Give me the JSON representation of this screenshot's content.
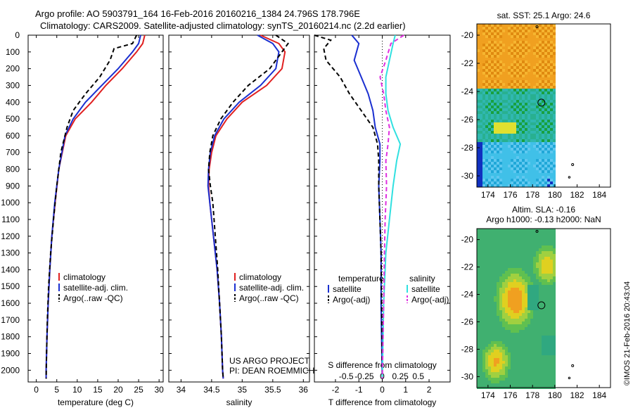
{
  "header": {
    "line1": "Argo profile: AO 5903791_164 16-Feb-2016 20160216_1384 24.796S 178.796E",
    "line2": "Climatology: CARS2009. Satellite-adjusted climatology: synTS_20160214.nc (2.2d earlier)"
  },
  "depth_ticks": [
    "0",
    "100",
    "200",
    "300",
    "400",
    "500",
    "600",
    "700",
    "800",
    "900",
    "1000",
    "1100",
    "1200",
    "1300",
    "1400",
    "1500",
    "1600",
    "1700",
    "1800",
    "1900",
    "2000"
  ],
  "colors": {
    "climatology": "#e02020",
    "satellite": "#1a2fd0",
    "argo": "#000000",
    "sat_sal": "#30e0e0",
    "argo_sal": "#e030e0"
  },
  "chart_data": [
    {
      "type": "line",
      "xlabel": "temperature (deg C)",
      "xticks": [
        "0",
        "5",
        "10",
        "15",
        "20",
        "25",
        "30"
      ],
      "xlim": [
        -2,
        31
      ],
      "ylim": [
        2070,
        0
      ],
      "legend": [
        "climatology",
        "satellite-adj. clim.",
        "Argo(..raw -QC)"
      ],
      "series": [
        {
          "name": "climatology",
          "depth": [
            0,
            50,
            100,
            200,
            300,
            400,
            500,
            600,
            800,
            1000,
            1200,
            1400,
            1600,
            1800,
            2000,
            2050
          ],
          "values": [
            26.5,
            26,
            24.5,
            21,
            17,
            13.5,
            9.5,
            7.2,
            5.5,
            4.6,
            3.8,
            3.3,
            2.9,
            2.6,
            2.4,
            2.4
          ]
        },
        {
          "name": "satellite-adj. clim.",
          "depth": [
            0,
            50,
            100,
            200,
            300,
            400,
            500,
            600,
            800,
            1000,
            1200,
            1400,
            1600,
            1800,
            2000,
            2050
          ],
          "values": [
            25.5,
            25,
            23.5,
            20,
            16,
            12,
            9,
            7,
            5.5,
            4.5,
            3.8,
            3.3,
            2.9,
            2.6,
            2.4,
            2.4
          ]
        },
        {
          "name": "Argo(..raw -QC)",
          "depth": [
            0,
            50,
            80,
            150,
            250,
            350,
            450,
            550,
            700,
            900,
            1100,
            1300,
            1500,
            1700,
            1900,
            2050
          ],
          "values": [
            24.5,
            23.5,
            19,
            18,
            15.5,
            12,
            9,
            7.5,
            6,
            5,
            4.2,
            3.5,
            3,
            2.7,
            2.5,
            2.4
          ]
        }
      ]
    },
    {
      "type": "line",
      "xlabel": "salinity",
      "xticks": [
        "34",
        "34.5",
        "35",
        "35.5",
        "36"
      ],
      "xlim": [
        33.8,
        36.1
      ],
      "ylim": [
        2070,
        0
      ],
      "legend": [
        "climatology",
        "satellite-adj. clim.",
        "Argo(..raw -QC)"
      ],
      "series": [
        {
          "name": "climatology",
          "depth": [
            0,
            50,
            100,
            200,
            300,
            400,
            500,
            600,
            700,
            800,
            900,
            1000,
            1200,
            1400,
            1600,
            1800,
            2000,
            2050
          ],
          "values": [
            35.3,
            35.6,
            35.7,
            35.65,
            35.4,
            35.0,
            34.75,
            34.57,
            34.5,
            34.46,
            34.45,
            34.47,
            34.53,
            34.59,
            34.63,
            34.66,
            34.68,
            34.69
          ]
        },
        {
          "name": "satellite-adj. clim.",
          "depth": [
            0,
            50,
            100,
            200,
            300,
            400,
            500,
            600,
            700,
            800,
            900,
            1000,
            1200,
            1400,
            1600,
            1800,
            2000,
            2050
          ],
          "values": [
            35.25,
            35.5,
            35.6,
            35.55,
            35.3,
            34.95,
            34.7,
            34.55,
            34.48,
            34.45,
            34.44,
            34.47,
            34.53,
            34.59,
            34.63,
            34.66,
            34.68,
            34.69
          ]
        },
        {
          "name": "Argo(..raw -QC)",
          "depth": [
            0,
            50,
            100,
            200,
            300,
            400,
            500,
            600,
            700,
            800,
            900,
            1000,
            1200,
            1400,
            1600,
            1800,
            2000,
            2050
          ],
          "values": [
            35.55,
            35.75,
            35.65,
            35.45,
            35.1,
            34.85,
            34.65,
            34.52,
            34.47,
            34.45,
            34.48,
            34.52,
            34.56,
            34.6,
            34.63,
            34.66,
            34.68,
            34.69
          ]
        }
      ]
    },
    {
      "type": "line",
      "xlabel": "T difference from climatology",
      "xlabel_top": "S difference from climatology",
      "xticks": [
        "-2",
        "-1",
        "0",
        "1",
        "2"
      ],
      "xticks_top": [
        "-0.5",
        "-0.25",
        "0",
        "0.25",
        "0.5"
      ],
      "xlim": [
        -2.9,
        2.9
      ],
      "ylim": [
        2070,
        0
      ],
      "legend": [
        "temperature",
        "satellite",
        "Argo(-adj)",
        "salinity",
        "satellite",
        "Argo(-adj)"
      ],
      "series": [
        {
          "name": "satellite",
          "depth": [
            0,
            50,
            150,
            250,
            350,
            450,
            550,
            650,
            750,
            900,
            1100,
            1300,
            1600,
            2050
          ],
          "values": [
            -1.3,
            -1.0,
            -1.2,
            -0.9,
            -0.6,
            -0.4,
            -0.3,
            -0.1,
            -0.1,
            -0.15,
            -0.1,
            -0.05,
            -0.05,
            0
          ]
        },
        {
          "name": "Argo(-adj)",
          "depth": [
            0,
            30,
            80,
            150,
            250,
            350,
            450,
            550,
            650,
            750,
            900,
            1100,
            1300,
            1600,
            2050
          ],
          "values": [
            -2.9,
            -2.2,
            -2.5,
            -2.4,
            -1.8,
            -1.4,
            -0.9,
            -0.4,
            -0.2,
            -0.15,
            -0.15,
            -0.1,
            -0.05,
            -0.03,
            0
          ]
        },
        {
          "name": "satellite",
          "depth": [
            0,
            50,
            150,
            250,
            350,
            450,
            550,
            650,
            750,
            900,
            1100,
            1300,
            1600,
            2050
          ],
          "values": [
            0.18,
            0.15,
            0.1,
            0.05,
            0.05,
            0.08,
            0.15,
            0.25,
            0.2,
            0.15,
            0.1,
            0.05,
            0.02,
            0
          ]
        },
        {
          "name": "Argo(-adj)",
          "depth": [
            0,
            50,
            150,
            250,
            350,
            450,
            550,
            650,
            750,
            900,
            1100,
            1300,
            1600,
            2050
          ],
          "values": [
            0.3,
            0.12,
            0.05,
            -0.03,
            0.02,
            0.05,
            0.1,
            0.08,
            0.05,
            0.06,
            0.04,
            0.03,
            0.02,
            0
          ]
        }
      ]
    }
  ],
  "maps": [
    {
      "title": "sat. SST: 25.1  Argo: 24.6",
      "yticks": [
        "-20",
        "-22",
        "-24",
        "-26",
        "-28",
        "-30"
      ],
      "xticks": [
        "174",
        "176",
        "178",
        "180",
        "182",
        "184"
      ]
    },
    {
      "title1": "Altim. SLA: -0.16",
      "title2": "Argo h1000: -0.13 h2000: NaN",
      "yticks": [
        "-20",
        "-22",
        "-24",
        "-26",
        "-28",
        "-30"
      ],
      "xticks": [
        "174",
        "176",
        "178",
        "180",
        "182",
        "184"
      ]
    }
  ],
  "annotation": {
    "line1": "US ARGO PROJECT",
    "line2": "PI: DEAN ROEMMICH"
  },
  "footer": "©IMOS 21-Feb-2016 20:43:04"
}
